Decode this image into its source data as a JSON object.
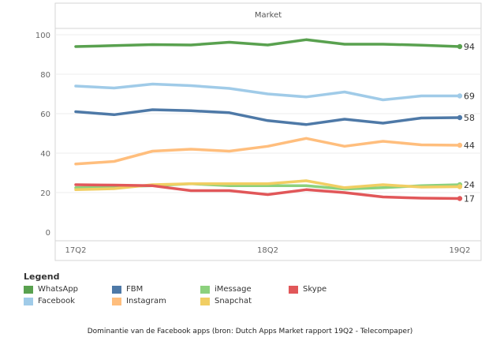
{
  "chart_data": {
    "type": "line",
    "header": "Market",
    "x": [
      "17Q2",
      "",
      "",
      "",
      "",
      "18Q2",
      "",
      "",
      "",
      "",
      "19Q2"
    ],
    "x_tick_labels": [
      "17Q2",
      "18Q2",
      "19Q2"
    ],
    "ylim": [
      0,
      100
    ],
    "y_ticks": [
      0,
      20,
      40,
      60,
      80,
      100
    ],
    "grid": true,
    "series": [
      {
        "name": "WhatsApp",
        "color": "#59a14f",
        "values": [
          94,
          94.5,
          95,
          94.8,
          96.2,
          94.8,
          97.5,
          95.2,
          95.2,
          94.7,
          94
        ],
        "end_label": "94"
      },
      {
        "name": "Facebook",
        "color": "#a0cbe8",
        "values": [
          74,
          73,
          75,
          74.2,
          72.8,
          70,
          68.5,
          71,
          67,
          69,
          69
        ],
        "end_label": "69"
      },
      {
        "name": "FBM",
        "color": "#4e79a7",
        "values": [
          61,
          59.5,
          62,
          61.5,
          60.5,
          56.5,
          54.5,
          57.2,
          55.2,
          57.8,
          58
        ],
        "end_label": "58"
      },
      {
        "name": "Instagram",
        "color": "#ffbe7d",
        "values": [
          34.5,
          35.8,
          41,
          42,
          41,
          43.5,
          47.5,
          43.5,
          46,
          44.2,
          44
        ],
        "end_label": "44"
      },
      {
        "name": "iMessage",
        "color": "#8cd17d",
        "values": [
          22.5,
          23,
          23.5,
          24.5,
          23.5,
          23.5,
          23.5,
          21.8,
          22.5,
          23.5,
          24
        ],
        "end_label": "24"
      },
      {
        "name": "Snapchat",
        "color": "#f1ce63",
        "values": [
          21.5,
          22,
          24,
          24.5,
          24.5,
          24.5,
          26,
          22.5,
          24,
          22.8,
          23
        ],
        "end_label": ""
      },
      {
        "name": "Skype",
        "color": "#e15759",
        "values": [
          24,
          23.8,
          23.5,
          21,
          21,
          19,
          21.5,
          20,
          17.8,
          17.2,
          17
        ],
        "end_label": "17"
      }
    ]
  },
  "legend": {
    "title": "Legend",
    "items": [
      {
        "name": "WhatsApp",
        "color": "#59a14f"
      },
      {
        "name": "FBM",
        "color": "#4e79a7"
      },
      {
        "name": "iMessage",
        "color": "#8cd17d"
      },
      {
        "name": "Skype",
        "color": "#e15759"
      },
      {
        "name": "Facebook",
        "color": "#a0cbe8"
      },
      {
        "name": "Instagram",
        "color": "#ffbe7d"
      },
      {
        "name": "Snapchat",
        "color": "#f1ce63"
      }
    ]
  },
  "caption": "Dominantie van de Facebook apps (bron: Dutch Apps Market rapport 19Q2 - Telecompaper)"
}
